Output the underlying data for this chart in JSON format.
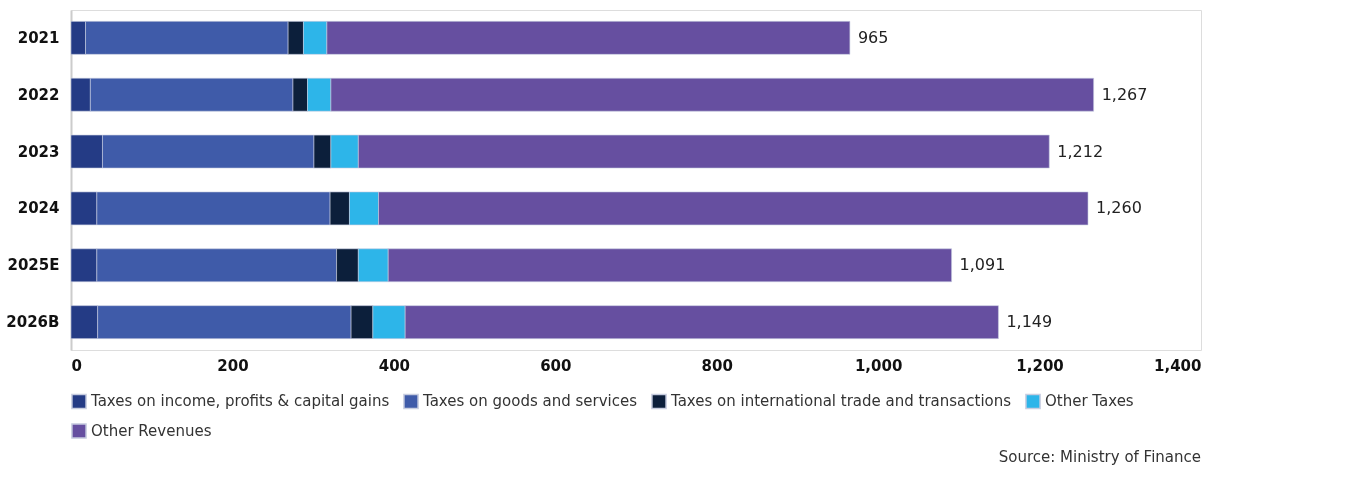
{
  "chart_data": {
    "type": "bar",
    "orientation": "horizontal",
    "stacked": true,
    "categories": [
      "2021",
      "2022",
      "2023",
      "2024",
      "2025E",
      "2026B"
    ],
    "series": [
      {
        "name": "Taxes on income, profits & capital gains",
        "color": "#243b85",
        "values": [
          18,
          24,
          39,
          32,
          32,
          33
        ]
      },
      {
        "name": "Taxes on goods and services",
        "color": "#3f5ba9",
        "values": [
          251,
          251,
          262,
          289,
          297,
          314
        ]
      },
      {
        "name": "Taxes on international trade and transactions",
        "color": "#0c1f3b",
        "values": [
          19,
          18,
          21,
          24,
          27,
          27
        ]
      },
      {
        "name": "Other Taxes",
        "color": "#2db5e9",
        "values": [
          29,
          29,
          34,
          36,
          37,
          40
        ]
      },
      {
        "name": "Other Revenues",
        "color": "#664fa0",
        "values": [
          648,
          945,
          856,
          879,
          698,
          735
        ]
      }
    ],
    "totals": [
      "965",
      "1,267",
      "1,212",
      "1,260",
      "1,091",
      "1,149"
    ],
    "xlim": [
      0,
      1400
    ],
    "xticks": [
      0,
      200,
      400,
      600,
      800,
      {
        "value": 1000,
        "label": "1,000"
      },
      {
        "value": 1200,
        "label": "1,200"
      },
      {
        "value": 1400,
        "label": "1,400"
      }
    ],
    "grid": false,
    "legend": "bottom",
    "annotations": [
      "Source: Ministry of Finance"
    ]
  }
}
